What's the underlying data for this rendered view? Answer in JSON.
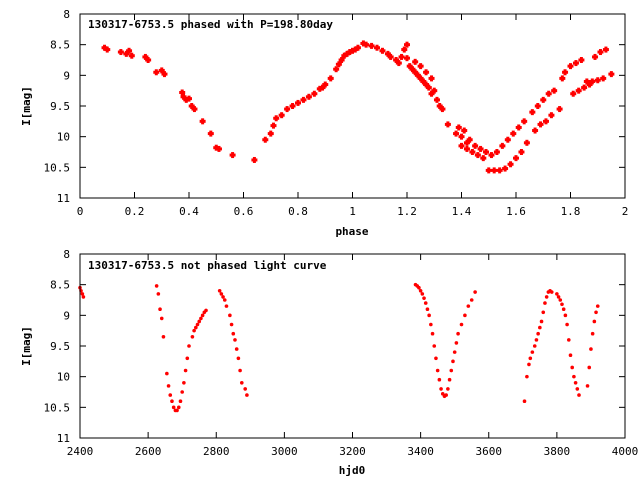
{
  "chart_data": [
    {
      "type": "scatter",
      "title": "130317-6753.5 phased with P=198.80day",
      "xlabel": "phase",
      "ylabel": "I[mag]",
      "xlim": [
        0,
        2
      ],
      "ylim": [
        11,
        8
      ],
      "y_inverted": true,
      "grid": false,
      "color": "#ff0000",
      "marker": "plus-bold",
      "xticks": [
        0,
        0.2,
        0.4,
        0.6,
        0.8,
        1,
        1.2,
        1.4,
        1.6,
        1.8,
        2
      ],
      "xtick_labels": [
        "0",
        "0.2",
        "0.4",
        "0.6",
        "0.8",
        "1",
        "1.2",
        "1.4",
        "1.6",
        "1.8",
        "2"
      ],
      "yticks": [
        8,
        8.5,
        9,
        9.5,
        10,
        10.5,
        11
      ],
      "ytick_labels": [
        "8",
        "8.5",
        "9",
        "9.5",
        "10",
        "10.5",
        "11"
      ],
      "points": [
        [
          0.09,
          8.55
        ],
        [
          0.1,
          8.58
        ],
        [
          0.15,
          8.62
        ],
        [
          0.17,
          8.65
        ],
        [
          0.18,
          8.6
        ],
        [
          0.19,
          8.68
        ],
        [
          0.24,
          8.7
        ],
        [
          0.25,
          8.75
        ],
        [
          0.28,
          8.95
        ],
        [
          0.3,
          8.92
        ],
        [
          0.31,
          8.98
        ],
        [
          0.375,
          9.28
        ],
        [
          0.38,
          9.35
        ],
        [
          0.39,
          9.4
        ],
        [
          0.4,
          9.38
        ],
        [
          0.41,
          9.5
        ],
        [
          0.42,
          9.55
        ],
        [
          0.45,
          9.75
        ],
        [
          0.48,
          9.95
        ],
        [
          0.5,
          10.18
        ],
        [
          0.51,
          10.2
        ],
        [
          0.56,
          10.3
        ],
        [
          0.64,
          10.38
        ],
        [
          0.68,
          10.05
        ],
        [
          0.7,
          9.95
        ],
        [
          0.71,
          9.82
        ],
        [
          0.72,
          9.7
        ],
        [
          0.74,
          9.65
        ],
        [
          0.76,
          9.55
        ],
        [
          0.78,
          9.5
        ],
        [
          0.8,
          9.45
        ],
        [
          0.82,
          9.4
        ],
        [
          0.84,
          9.35
        ],
        [
          0.86,
          9.3
        ],
        [
          0.88,
          9.22
        ],
        [
          0.89,
          9.2
        ],
        [
          0.9,
          9.15
        ],
        [
          0.92,
          9.05
        ],
        [
          0.94,
          8.9
        ],
        [
          0.95,
          8.82
        ],
        [
          0.96,
          8.75
        ],
        [
          0.97,
          8.68
        ],
        [
          0.98,
          8.65
        ],
        [
          0.99,
          8.62
        ],
        [
          1.0,
          8.6
        ],
        [
          1.01,
          8.58
        ],
        [
          1.02,
          8.55
        ],
        [
          1.04,
          8.48
        ],
        [
          1.05,
          8.5
        ],
        [
          1.07,
          8.52
        ],
        [
          1.09,
          8.55
        ],
        [
          1.11,
          8.6
        ],
        [
          1.13,
          8.65
        ],
        [
          1.14,
          8.7
        ],
        [
          1.16,
          8.75
        ],
        [
          1.17,
          8.8
        ],
        [
          1.18,
          8.7
        ],
        [
          1.19,
          8.58
        ],
        [
          1.2,
          8.72
        ],
        [
          1.2,
          8.5
        ],
        [
          1.21,
          8.85
        ],
        [
          1.22,
          8.9
        ],
        [
          1.23,
          8.95
        ],
        [
          1.23,
          8.78
        ],
        [
          1.24,
          9.0
        ],
        [
          1.25,
          9.05
        ],
        [
          1.25,
          8.85
        ],
        [
          1.26,
          9.1
        ],
        [
          1.27,
          9.15
        ],
        [
          1.27,
          8.95
        ],
        [
          1.28,
          9.2
        ],
        [
          1.29,
          9.3
        ],
        [
          1.29,
          9.05
        ],
        [
          1.3,
          9.25
        ],
        [
          1.31,
          9.4
        ],
        [
          1.32,
          9.5
        ],
        [
          1.33,
          9.55
        ],
        [
          1.35,
          9.8
        ],
        [
          1.38,
          9.95
        ],
        [
          1.39,
          9.85
        ],
        [
          1.4,
          10.0
        ],
        [
          1.4,
          10.15
        ],
        [
          1.41,
          9.9
        ],
        [
          1.42,
          10.1
        ],
        [
          1.42,
          10.2
        ],
        [
          1.43,
          10.05
        ],
        [
          1.44,
          10.25
        ],
        [
          1.45,
          10.15
        ],
        [
          1.46,
          10.3
        ],
        [
          1.47,
          10.2
        ],
        [
          1.48,
          10.35
        ],
        [
          1.49,
          10.25
        ],
        [
          1.5,
          10.55
        ],
        [
          1.51,
          10.3
        ],
        [
          1.52,
          10.55
        ],
        [
          1.53,
          10.25
        ],
        [
          1.54,
          10.55
        ],
        [
          1.55,
          10.15
        ],
        [
          1.56,
          10.52
        ],
        [
          1.57,
          10.05
        ],
        [
          1.58,
          10.45
        ],
        [
          1.59,
          9.95
        ],
        [
          1.6,
          10.35
        ],
        [
          1.61,
          9.85
        ],
        [
          1.62,
          10.25
        ],
        [
          1.63,
          9.75
        ],
        [
          1.64,
          10.1
        ],
        [
          1.66,
          9.6
        ],
        [
          1.67,
          9.9
        ],
        [
          1.68,
          9.5
        ],
        [
          1.69,
          9.8
        ],
        [
          1.7,
          9.4
        ],
        [
          1.71,
          9.75
        ],
        [
          1.72,
          9.3
        ],
        [
          1.73,
          9.65
        ],
        [
          1.74,
          9.25
        ],
        [
          1.76,
          9.55
        ],
        [
          1.77,
          9.05
        ],
        [
          1.78,
          8.95
        ],
        [
          1.8,
          8.85
        ],
        [
          1.81,
          9.3
        ],
        [
          1.82,
          8.8
        ],
        [
          1.83,
          9.25
        ],
        [
          1.84,
          8.75
        ],
        [
          1.85,
          9.2
        ],
        [
          1.86,
          9.1
        ],
        [
          1.87,
          9.15
        ],
        [
          1.88,
          9.1
        ],
        [
          1.89,
          8.7
        ],
        [
          1.9,
          9.08
        ],
        [
          1.91,
          8.62
        ],
        [
          1.92,
          9.05
        ],
        [
          1.93,
          8.58
        ],
        [
          1.95,
          8.98
        ]
      ]
    },
    {
      "type": "scatter",
      "title": "130317-6753.5 not phased light curve",
      "xlabel": "hjd0",
      "ylabel": "I[mag]",
      "xlim": [
        2400,
        4000
      ],
      "ylim": [
        11,
        8
      ],
      "y_inverted": true,
      "grid": false,
      "color": "#ff0000",
      "marker": "dot",
      "xticks": [
        2400,
        2600,
        2800,
        3000,
        3200,
        3400,
        3600,
        3800,
        4000
      ],
      "xtick_labels": [
        "2400",
        "2600",
        "2800",
        "3000",
        "3200",
        "3400",
        "3600",
        "3800",
        "4000"
      ],
      "yticks": [
        8,
        8.5,
        9,
        9.5,
        10,
        10.5,
        11
      ],
      "ytick_labels": [
        "8",
        "8.5",
        "9",
        "9.5",
        "10",
        "10.5",
        "11"
      ],
      "points": [
        [
          2400,
          8.55
        ],
        [
          2403,
          8.6
        ],
        [
          2407,
          8.65
        ],
        [
          2410,
          8.7
        ],
        [
          2625,
          8.52
        ],
        [
          2630,
          8.65
        ],
        [
          2635,
          8.9
        ],
        [
          2640,
          9.05
        ],
        [
          2645,
          9.35
        ],
        [
          2655,
          9.95
        ],
        [
          2660,
          10.15
        ],
        [
          2665,
          10.3
        ],
        [
          2670,
          10.4
        ],
        [
          2675,
          10.5
        ],
        [
          2680,
          10.55
        ],
        [
          2685,
          10.55
        ],
        [
          2690,
          10.5
        ],
        [
          2695,
          10.4
        ],
        [
          2700,
          10.25
        ],
        [
          2705,
          10.1
        ],
        [
          2710,
          9.9
        ],
        [
          2715,
          9.7
        ],
        [
          2720,
          9.5
        ],
        [
          2730,
          9.35
        ],
        [
          2735,
          9.25
        ],
        [
          2740,
          9.2
        ],
        [
          2745,
          9.15
        ],
        [
          2750,
          9.1
        ],
        [
          2755,
          9.05
        ],
        [
          2760,
          9.0
        ],
        [
          2765,
          8.95
        ],
        [
          2770,
          8.92
        ],
        [
          2810,
          8.6
        ],
        [
          2815,
          8.65
        ],
        [
          2820,
          8.7
        ],
        [
          2825,
          8.75
        ],
        [
          2830,
          8.85
        ],
        [
          2840,
          9.0
        ],
        [
          2845,
          9.15
        ],
        [
          2850,
          9.3
        ],
        [
          2855,
          9.4
        ],
        [
          2860,
          9.55
        ],
        [
          2865,
          9.7
        ],
        [
          2870,
          9.9
        ],
        [
          2875,
          10.1
        ],
        [
          2885,
          10.2
        ],
        [
          2890,
          10.3
        ],
        [
          3385,
          8.5
        ],
        [
          3390,
          8.52
        ],
        [
          3395,
          8.55
        ],
        [
          3400,
          8.6
        ],
        [
          3405,
          8.65
        ],
        [
          3410,
          8.72
        ],
        [
          3415,
          8.8
        ],
        [
          3420,
          8.9
        ],
        [
          3425,
          9.0
        ],
        [
          3430,
          9.15
        ],
        [
          3435,
          9.3
        ],
        [
          3440,
          9.5
        ],
        [
          3445,
          9.7
        ],
        [
          3450,
          9.9
        ],
        [
          3455,
          10.05
        ],
        [
          3460,
          10.2
        ],
        [
          3465,
          10.28
        ],
        [
          3470,
          10.32
        ],
        [
          3475,
          10.3
        ],
        [
          3480,
          10.2
        ],
        [
          3485,
          10.05
        ],
        [
          3490,
          9.9
        ],
        [
          3495,
          9.75
        ],
        [
          3500,
          9.6
        ],
        [
          3505,
          9.45
        ],
        [
          3510,
          9.3
        ],
        [
          3520,
          9.15
        ],
        [
          3530,
          9.0
        ],
        [
          3540,
          8.85
        ],
        [
          3550,
          8.75
        ],
        [
          3560,
          8.62
        ],
        [
          3705,
          10.4
        ],
        [
          3712,
          10.0
        ],
        [
          3718,
          9.8
        ],
        [
          3722,
          9.7
        ],
        [
          3728,
          9.6
        ],
        [
          3735,
          9.5
        ],
        [
          3740,
          9.4
        ],
        [
          3745,
          9.3
        ],
        [
          3750,
          9.2
        ],
        [
          3755,
          9.1
        ],
        [
          3760,
          8.95
        ],
        [
          3765,
          8.8
        ],
        [
          3770,
          8.7
        ],
        [
          3775,
          8.62
        ],
        [
          3780,
          8.6
        ],
        [
          3785,
          8.62
        ],
        [
          3800,
          8.65
        ],
        [
          3805,
          8.7
        ],
        [
          3810,
          8.75
        ],
        [
          3815,
          8.82
        ],
        [
          3820,
          8.9
        ],
        [
          3825,
          9.0
        ],
        [
          3830,
          9.15
        ],
        [
          3835,
          9.4
        ],
        [
          3840,
          9.65
        ],
        [
          3845,
          9.85
        ],
        [
          3850,
          10.0
        ],
        [
          3855,
          10.1
        ],
        [
          3860,
          10.2
        ],
        [
          3865,
          10.3
        ],
        [
          3890,
          10.15
        ],
        [
          3895,
          9.85
        ],
        [
          3900,
          9.55
        ],
        [
          3905,
          9.3
        ],
        [
          3910,
          9.1
        ],
        [
          3915,
          8.95
        ],
        [
          3920,
          8.85
        ]
      ]
    }
  ]
}
